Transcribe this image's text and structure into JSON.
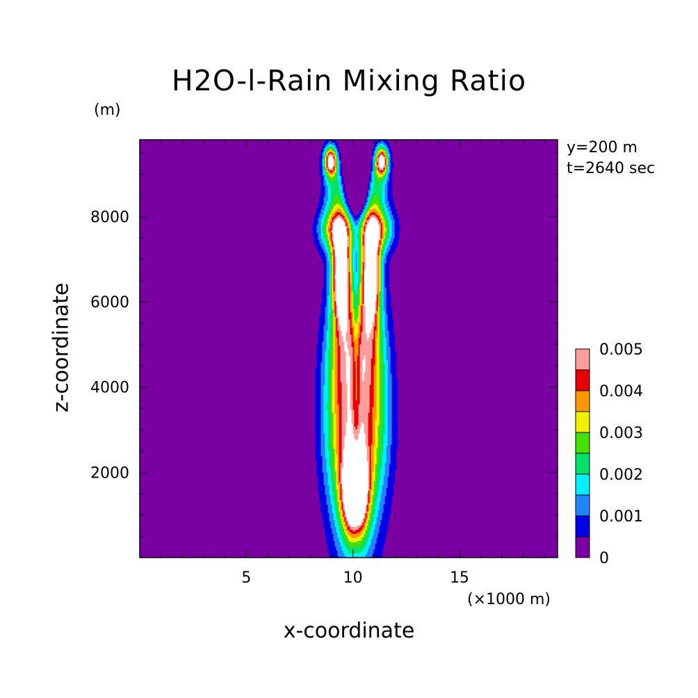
{
  "chart_data": {
    "type": "contour",
    "title": "H2O-l-Rain Mixing Ratio",
    "xlabel": "x-coordinate",
    "ylabel": "z-coordinate",
    "x_unit": "(×1000 m)",
    "y_unit": "(m)",
    "xlim": [
      0,
      19.6
    ],
    "ylim": [
      0,
      9800
    ],
    "x_ticks": [
      "5",
      "10",
      "15"
    ],
    "y_ticks": [
      "2000",
      "4000",
      "6000",
      "8000"
    ],
    "annotations": [
      "y=200 m",
      "t=2640 sec"
    ],
    "colorbar": {
      "levels": [
        0,
        0.0005,
        0.001,
        0.0015,
        0.002,
        0.0025,
        0.003,
        0.0035,
        0.004,
        0.0045,
        0.005
      ],
      "labels": [
        "0",
        "0.001",
        "0.002",
        "0.003",
        "0.004",
        "0.005"
      ],
      "colors": [
        "#7a00a3",
        "#0000e6",
        "#1f85ff",
        "#00f0ff",
        "#00e36b",
        "#46e000",
        "#f0f000",
        "#ff9800",
        "#e60000",
        "#ff9c9c",
        "#ffffff"
      ]
    },
    "max_value_region_color": "#ffffff"
  }
}
